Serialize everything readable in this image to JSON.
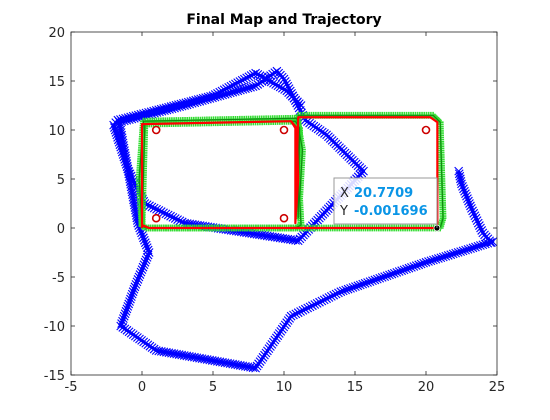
{
  "chart_data": {
    "type": "line",
    "title": "Final Map and Trajectory",
    "xlim": [
      -5,
      25
    ],
    "ylim": [
      -15,
      20
    ],
    "xticks": [
      -5,
      0,
      5,
      10,
      15,
      20,
      25
    ],
    "yticks": [
      -15,
      -10,
      -5,
      0,
      5,
      10,
      15,
      20
    ],
    "grid": false,
    "colors": {
      "noisy": "#0000ff",
      "estimate": "#33dd33",
      "truth": "#ff0000",
      "landmark": "#cc0000",
      "marker": "#000000"
    },
    "series": [
      {
        "style": "noisy-trajectory",
        "x": [
          22.3,
          22.5,
          23.2,
          24.0,
          24.6,
          24.7,
          20.0,
          14.0,
          10.5,
          8.0,
          1.0,
          -1.5,
          -1.0,
          -0.5,
          0.5,
          -0.3,
          -1.6,
          3.0,
          8.0,
          9.5,
          10.0,
          10.8,
          11.5,
          13.0,
          15.6,
          11.0,
          3.0,
          0.2,
          -1.0,
          -2.0,
          -1.7,
          1.0,
          5.0,
          8.0,
          10.2,
          11.2
        ],
        "y": [
          5.8,
          4.5,
          2.0,
          -0.5,
          -1.5,
          -1.4,
          -3.5,
          -6.5,
          -9.0,
          -14.3,
          -12.5,
          -10.0,
          -8.0,
          -6.0,
          -2.5,
          0.5,
          10.8,
          12.5,
          14.5,
          16.0,
          15.2,
          13.0,
          11.0,
          9.5,
          5.8,
          -1.3,
          0.5,
          2.5,
          6.0,
          10.5,
          11.0,
          12.0,
          13.5,
          15.8,
          14.0,
          12.5
        ]
      },
      {
        "style": "estimated-trajectory",
        "x": [
          0,
          0.2,
          10.8,
          11.1,
          11.0,
          11.0,
          20.5,
          21.0,
          21.2,
          21.0,
          0.3,
          0,
          -0.2,
          0.1,
          10.9,
          11.3,
          11.1,
          11.2,
          10.8,
          0.3,
          0
        ],
        "y": [
          0.2,
          10.6,
          10.9,
          10.2,
          1.0,
          11.5,
          11.5,
          10.8,
          1.0,
          0,
          0,
          0.3,
          5.0,
          10.9,
          11.2,
          8.0,
          3.0,
          0.3,
          0,
          0,
          0.2
        ]
      },
      {
        "style": "true-trajectory",
        "x": [
          0,
          0,
          10.5,
          10.8,
          10.8,
          11.0,
          20.3,
          20.8,
          20.8,
          20.7709,
          0.5,
          0,
          0,
          10.5,
          10.9,
          11.0,
          10.8
        ],
        "y": [
          0,
          10.6,
          10.9,
          10.2,
          0.5,
          11.3,
          11.3,
          10.8,
          0.5,
          -0.001696,
          0,
          0.3,
          10.6,
          10.9,
          10.2,
          5.0,
          0.5
        ]
      },
      {
        "style": "landmarks",
        "x": [
          1,
          1,
          10,
          10,
          20
        ],
        "y": [
          10,
          1,
          10,
          1,
          10
        ]
      }
    ],
    "annotation": {
      "x": 20.7709,
      "y": -0.001696,
      "x_key": "X",
      "y_key": "Y",
      "x_text": "20.7709",
      "y_text": "-0.001696"
    }
  }
}
